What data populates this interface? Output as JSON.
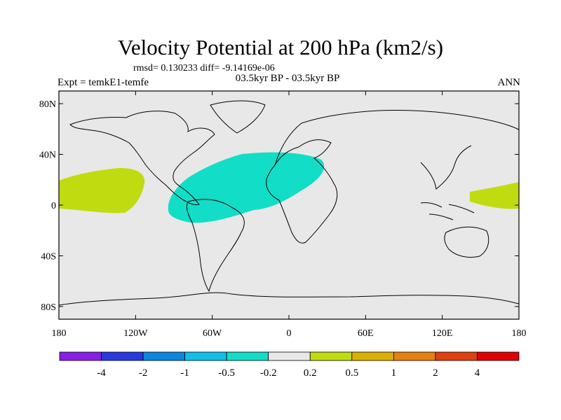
{
  "title": "Velocity Potential at 200 hPa (km2/s)",
  "stats_line": "rmsd= 0.130233 diff= -9.14169e-06",
  "left_label": "Expt = temkE1-temfe",
  "center_label": "03.5kyr BP - 03.5kyr BP",
  "right_label": "ANN",
  "lon_ticks": [
    {
      "lon": -180,
      "label": "180"
    },
    {
      "lon": -120,
      "label": "120W"
    },
    {
      "lon": -60,
      "label": "60W"
    },
    {
      "lon": 0,
      "label": "0"
    },
    {
      "lon": 60,
      "label": "60E"
    },
    {
      "lon": 120,
      "label": "120E"
    },
    {
      "lon": 180,
      "label": "180"
    }
  ],
  "lat_ticks": [
    {
      "lat": 80,
      "label": "80N"
    },
    {
      "lat": 40,
      "label": "40N"
    },
    {
      "lat": 0,
      "label": "0"
    },
    {
      "lat": -40,
      "label": "40S"
    },
    {
      "lat": -80,
      "label": "80S"
    }
  ],
  "colorbar": {
    "colors": [
      "#8a1ee6",
      "#2a38e0",
      "#0a86e0",
      "#10c0e8",
      "#12ddc6",
      "#e8e8e8",
      "#c0dc10",
      "#dcb000",
      "#e88010",
      "#e04010",
      "#e00000"
    ],
    "labels": [
      "-4",
      "-2",
      "-1",
      "-0.5",
      "-0.2",
      "0.2",
      "0.5",
      "1",
      "2",
      "4"
    ]
  },
  "colors": {
    "background_field": "#e8e8e8",
    "negative_anomaly": "#12ddc6",
    "positive_anomaly": "#c0dc10"
  }
}
